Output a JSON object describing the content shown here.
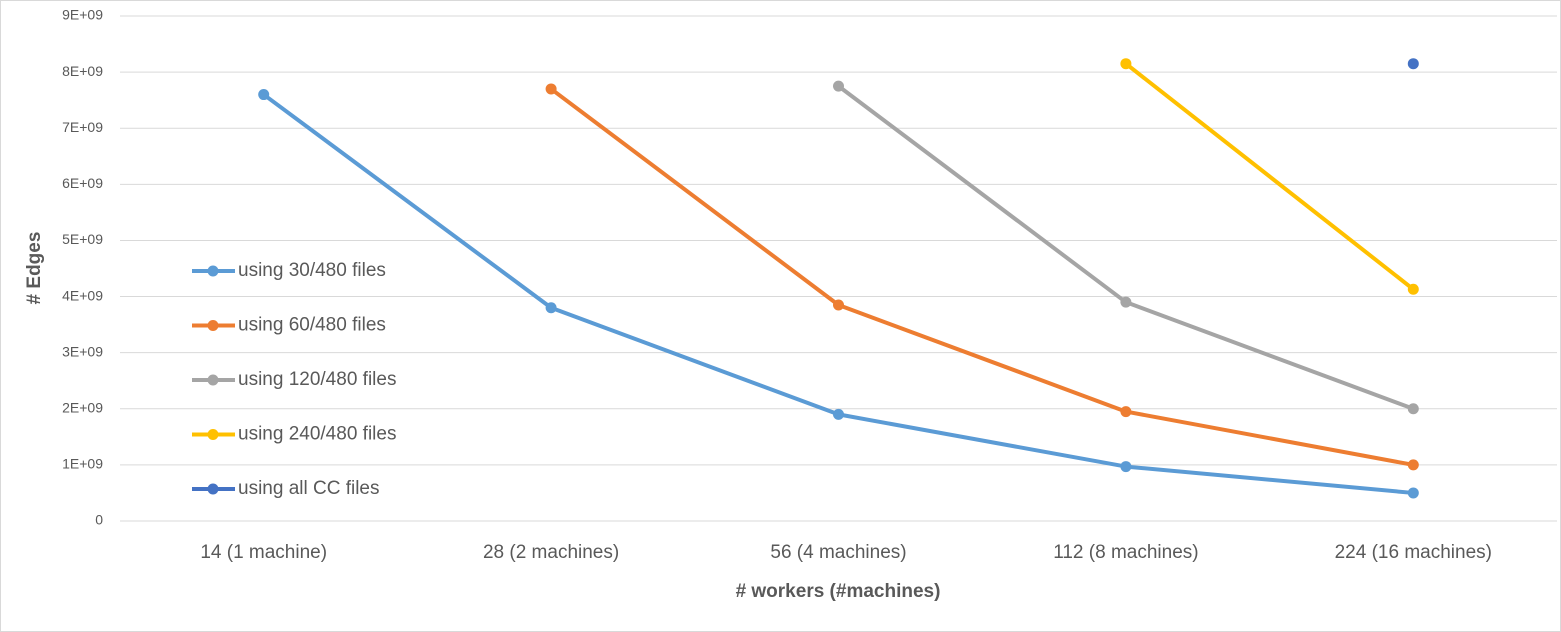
{
  "chart_data": {
    "type": "line",
    "x_label": "# workers (#machines)",
    "y_label": "# Edges",
    "categories": [
      "14 (1 machine)",
      "28 (2 machines)",
      "56 (4 machines)",
      "112 (8 machines)",
      "224 (16 machines)"
    ],
    "series": [
      {
        "name": "using 30/480 files",
        "color": "#5b9bd5",
        "values": [
          7600000000,
          3800000000,
          1900000000,
          970000000,
          500000000
        ]
      },
      {
        "name": "using 60/480 files",
        "color": "#ed7d31",
        "values": [
          null,
          7700000000,
          3850000000,
          1950000000,
          1000000000
        ]
      },
      {
        "name": "using 120/480 files",
        "color": "#a5a5a5",
        "values": [
          null,
          null,
          7750000000,
          3900000000,
          2000000000
        ]
      },
      {
        "name": "using 240/480 files",
        "color": "#ffc000",
        "values": [
          null,
          null,
          null,
          8150000000,
          4130000000
        ]
      },
      {
        "name": "using all CC files",
        "color": "#4472c4",
        "values": [
          null,
          null,
          null,
          null,
          8150000000
        ]
      }
    ],
    "ylim": [
      0,
      9000000000
    ],
    "yticks": [
      0,
      {
        "value": 1000000000,
        "label": "1E+09"
      },
      {
        "value": 2000000000,
        "label": "2E+09"
      },
      {
        "value": 3000000000,
        "label": "3E+09"
      },
      {
        "value": 4000000000,
        "label": "4E+09"
      },
      {
        "value": 5000000000,
        "label": "5E+09"
      },
      {
        "value": 6000000000,
        "label": "6E+09"
      },
      {
        "value": 7000000000,
        "label": "7E+09"
      },
      {
        "value": 8000000000,
        "label": "8E+09"
      },
      {
        "value": 9000000000,
        "label": "9E+09"
      }
    ],
    "grid": true,
    "legend": "left"
  }
}
